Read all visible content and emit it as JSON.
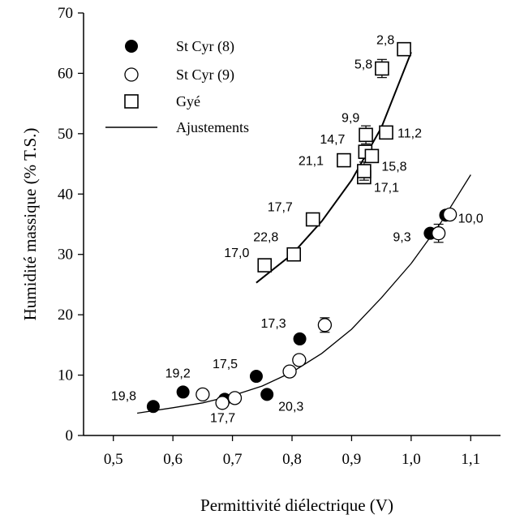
{
  "chart_data": {
    "type": "scatter",
    "title": "",
    "xlabel": "Permittivité diélectrique (V)",
    "ylabel": "Humidité massique (% T.S.)",
    "xlim": [
      0.45,
      1.15
    ],
    "ylim": [
      0,
      70
    ],
    "x_ticks": [
      "0,5",
      "0,6",
      "0,7",
      "0,8",
      "0,9",
      "1,0",
      "1,1"
    ],
    "x_tick_values": [
      0.5,
      0.6,
      0.7,
      0.8,
      0.9,
      1.0,
      1.1
    ],
    "y_ticks": [
      "0",
      "10",
      "20",
      "30",
      "40",
      "50",
      "60",
      "70"
    ],
    "y_tick_values": [
      0,
      10,
      20,
      30,
      40,
      50,
      60,
      70
    ],
    "grid": false,
    "legend_position": "top-left",
    "series": [
      {
        "name": "St Cyr (8)",
        "marker": "filled-circle",
        "color": "#000000",
        "points": [
          {
            "x": 0.567,
            "y": 4.8
          },
          {
            "x": 0.617,
            "y": 7.2
          },
          {
            "x": 0.687,
            "y": 6.0
          },
          {
            "x": 0.74,
            "y": 9.8
          },
          {
            "x": 0.758,
            "y": 6.8
          },
          {
            "x": 0.813,
            "y": 16.0
          },
          {
            "x": 1.032,
            "y": 33.5
          },
          {
            "x": 1.058,
            "y": 36.5
          }
        ]
      },
      {
        "name": "St Cyr (9)",
        "marker": "open-circle",
        "color": "#000000",
        "points": [
          {
            "x": 0.65,
            "y": 6.8
          },
          {
            "x": 0.683,
            "y": 5.4
          },
          {
            "x": 0.704,
            "y": 6.2
          },
          {
            "x": 0.796,
            "y": 10.6
          },
          {
            "x": 0.812,
            "y": 12.5
          },
          {
            "x": 0.855,
            "y": 18.3,
            "err": 1.2
          },
          {
            "x": 1.046,
            "y": 33.5,
            "err": 1.5
          },
          {
            "x": 1.065,
            "y": 36.6
          }
        ]
      },
      {
        "name": "Gyé",
        "marker": "open-square",
        "color": "#000000",
        "points": [
          {
            "x": 0.754,
            "y": 28.2
          },
          {
            "x": 0.803,
            "y": 30.0
          },
          {
            "x": 0.835,
            "y": 35.8
          },
          {
            "x": 0.887,
            "y": 45.6
          },
          {
            "x": 0.921,
            "y": 42.8
          },
          {
            "x": 0.921,
            "y": 43.8,
            "err": 1.5
          },
          {
            "x": 0.923,
            "y": 47.0
          },
          {
            "x": 0.924,
            "y": 49.8,
            "err": 1.5
          },
          {
            "x": 0.934,
            "y": 46.3
          },
          {
            "x": 0.951,
            "y": 60.8,
            "err": 1.5
          },
          {
            "x": 0.958,
            "y": 50.2
          },
          {
            "x": 0.988,
            "y": 64.0
          }
        ]
      }
    ],
    "fits": [
      {
        "name": "Ajustements",
        "x": [
          0.74,
          0.8,
          0.85,
          0.9,
          0.95,
          1.0
        ],
        "y": [
          25.3,
          30.0,
          35.5,
          42.3,
          51.0,
          63.5
        ]
      },
      {
        "x": [
          0.54,
          0.6,
          0.65,
          0.7,
          0.75,
          0.8,
          0.85,
          0.9,
          0.95,
          1.0,
          1.05,
          1.1
        ],
        "y": [
          3.7,
          4.6,
          5.4,
          6.6,
          8.2,
          10.5,
          13.6,
          17.6,
          22.8,
          28.5,
          35.3,
          43.2
        ]
      }
    ],
    "annotations": [
      {
        "text": "2,8",
        "x": 0.988,
        "y": 64.0
      },
      {
        "text": "5,8",
        "x": 0.951,
        "y": 60.8
      },
      {
        "text": "9,9",
        "x": 0.924,
        "y": 49.8
      },
      {
        "text": "11,2",
        "x": 0.958,
        "y": 50.2
      },
      {
        "text": "14,7",
        "x": 0.923,
        "y": 47.0
      },
      {
        "text": "15,8",
        "x": 0.934,
        "y": 46.3
      },
      {
        "text": "21,1",
        "x": 0.887,
        "y": 45.6
      },
      {
        "text": "17,1",
        "x": 0.921,
        "y": 42.8
      },
      {
        "text": "17,7",
        "x": 0.835,
        "y": 35.8
      },
      {
        "text": "22,8",
        "x": 0.803,
        "y": 30.0
      },
      {
        "text": "17,0",
        "x": 0.754,
        "y": 28.2
      },
      {
        "text": "9,3",
        "x": 1.032,
        "y": 33.5
      },
      {
        "text": "10,0",
        "x": 1.065,
        "y": 36.6
      },
      {
        "text": "17,3",
        "x": 0.813,
        "y": 16.0
      },
      {
        "text": "19,2",
        "x": 0.617,
        "y": 7.2
      },
      {
        "text": "17,5",
        "x": 0.74,
        "y": 9.8
      },
      {
        "text": "19,8",
        "x": 0.567,
        "y": 4.8
      },
      {
        "text": "20,3",
        "x": 0.758,
        "y": 6.8
      },
      {
        "text": "17,7",
        "x": 0.687,
        "y": 6.0
      }
    ]
  }
}
